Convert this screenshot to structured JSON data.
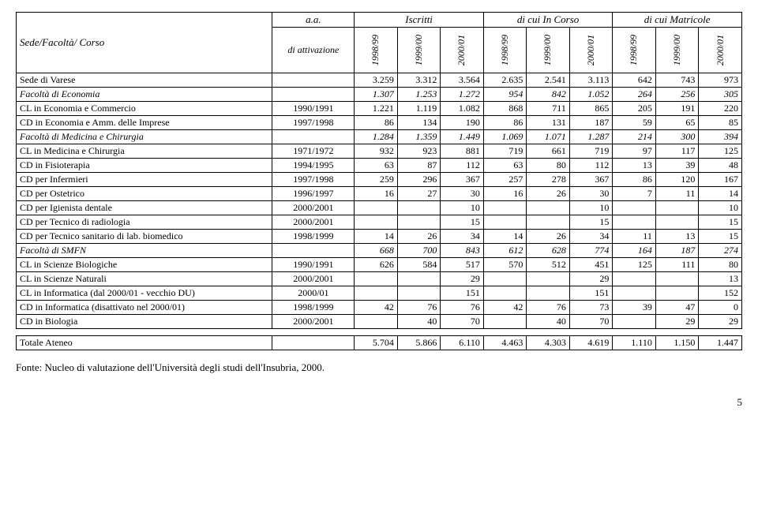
{
  "header": {
    "row_label": "Sede/Facoltà/ Corso",
    "attivazione_top": "a.a.",
    "attivazione_bottom": "di attivazione",
    "groups": [
      "Iscritti",
      "di cui In Corso",
      "di cui Matricole"
    ],
    "years": [
      "1998/99",
      "1999/00",
      "2000/01",
      "1998/99",
      "1999/00",
      "2000/01",
      "1998/99",
      "1999/00",
      "2000/01"
    ]
  },
  "rows": [
    {
      "italic": false,
      "label": "Sede di Varese",
      "att": "",
      "vals": [
        "3.259",
        "3.312",
        "3.564",
        "2.635",
        "2.541",
        "3.113",
        "642",
        "743",
        "973"
      ]
    },
    {
      "italic": true,
      "label": "Facoltà di Economia",
      "att": "",
      "vals": [
        "1.307",
        "1.253",
        "1.272",
        "954",
        "842",
        "1.052",
        "264",
        "256",
        "305"
      ]
    },
    {
      "italic": false,
      "label": "CL in Economia e Commercio",
      "att": "1990/1991",
      "vals": [
        "1.221",
        "1.119",
        "1.082",
        "868",
        "711",
        "865",
        "205",
        "191",
        "220"
      ]
    },
    {
      "italic": false,
      "label": "CD in Economia e Amm. delle Imprese",
      "att": "1997/1998",
      "vals": [
        "86",
        "134",
        "190",
        "86",
        "131",
        "187",
        "59",
        "65",
        "85"
      ]
    },
    {
      "italic": true,
      "label": "Facoltà di Medicina e Chirurgia",
      "att": "",
      "vals": [
        "1.284",
        "1.359",
        "1.449",
        "1.069",
        "1.071",
        "1.287",
        "214",
        "300",
        "394"
      ]
    },
    {
      "italic": false,
      "label": "CL in Medicina e Chirurgia",
      "att": "1971/1972",
      "vals": [
        "932",
        "923",
        "881",
        "719",
        "661",
        "719",
        "97",
        "117",
        "125"
      ]
    },
    {
      "italic": false,
      "label": "CD in Fisioterapia",
      "att": "1994/1995",
      "vals": [
        "63",
        "87",
        "112",
        "63",
        "80",
        "112",
        "13",
        "39",
        "48"
      ]
    },
    {
      "italic": false,
      "label": "CD per Infermieri",
      "att": "1997/1998",
      "vals": [
        "259",
        "296",
        "367",
        "257",
        "278",
        "367",
        "86",
        "120",
        "167"
      ]
    },
    {
      "italic": false,
      "label": "CD per Ostetrico",
      "att": "1996/1997",
      "vals": [
        "16",
        "27",
        "30",
        "16",
        "26",
        "30",
        "7",
        "11",
        "14"
      ]
    },
    {
      "italic": false,
      "label": "CD per Igienista dentale",
      "att": "2000/2001",
      "vals": [
        "",
        "",
        "10",
        "",
        "",
        "10",
        "",
        "",
        "10"
      ]
    },
    {
      "italic": false,
      "label": "CD per Tecnico di radiologia",
      "att": "2000/2001",
      "vals": [
        "",
        "",
        "15",
        "",
        "",
        "15",
        "",
        "",
        "15"
      ]
    },
    {
      "italic": false,
      "label": "CD per Tecnico sanitario di lab. biomedico",
      "att": "1998/1999",
      "vals": [
        "14",
        "26",
        "34",
        "14",
        "26",
        "34",
        "11",
        "13",
        "15"
      ]
    },
    {
      "italic": true,
      "label": "Facoltà di SMFN",
      "att": "",
      "vals": [
        "668",
        "700",
        "843",
        "612",
        "628",
        "774",
        "164",
        "187",
        "274"
      ]
    },
    {
      "italic": false,
      "label": "CL in Scienze Biologiche",
      "att": "1990/1991",
      "vals": [
        "626",
        "584",
        "517",
        "570",
        "512",
        "451",
        "125",
        "111",
        "80"
      ]
    },
    {
      "italic": false,
      "label": "CL in Scienze Naturali",
      "att": "2000/2001",
      "vals": [
        "",
        "",
        "29",
        "",
        "",
        "29",
        "",
        "",
        "13"
      ]
    },
    {
      "italic": false,
      "label": "CL in Informatica (dal 2000/01 - vecchio DU)",
      "att": "2000/01",
      "vals": [
        "",
        "",
        "151",
        "",
        "",
        "151",
        "",
        "",
        "152"
      ]
    },
    {
      "italic": false,
      "label": "CD in Informatica (disattivato nel 2000/01)",
      "att": "1998/1999",
      "vals": [
        "42",
        "76",
        "76",
        "42",
        "76",
        "73",
        "39",
        "47",
        "0"
      ]
    },
    {
      "italic": false,
      "label": "CD in Biologia",
      "att": "2000/2001",
      "vals": [
        "",
        "40",
        "70",
        "",
        "40",
        "70",
        "",
        "29",
        "29"
      ]
    }
  ],
  "totale": {
    "label": "Totale Ateneo",
    "att": "",
    "vals": [
      "5.704",
      "5.866",
      "6.110",
      "4.463",
      "4.303",
      "4.619",
      "1.110",
      "1.150",
      "1.447"
    ]
  },
  "footer": "Fonte:  Nucleo di valutazione dell'Università degli studi dell'Insubria, 2000.",
  "page_number": "5"
}
